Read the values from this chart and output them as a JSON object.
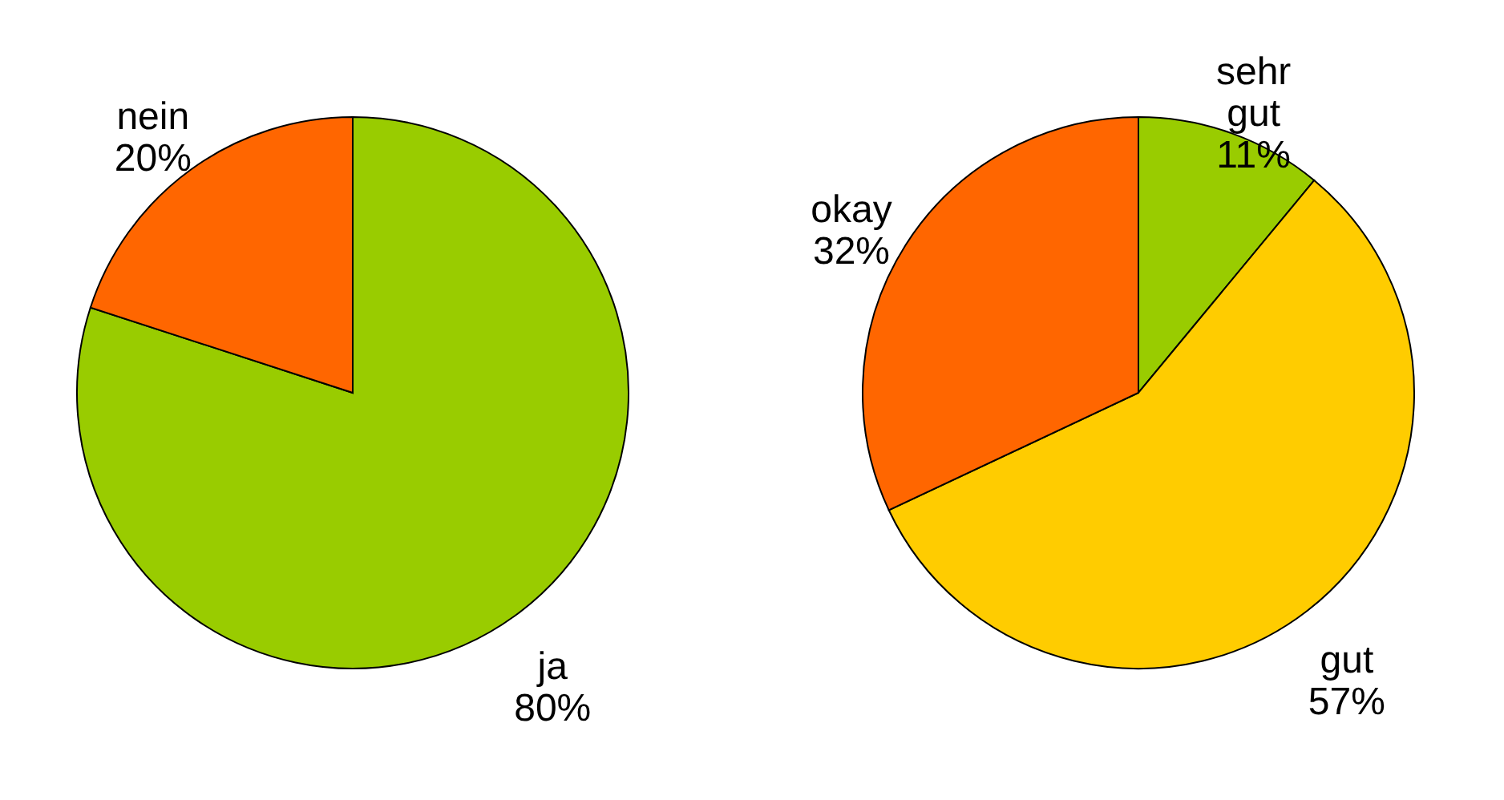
{
  "chart_data": [
    {
      "type": "pie",
      "categories": [
        "ja",
        "nein"
      ],
      "values": [
        80,
        20
      ],
      "colors": [
        "#99cc00",
        "#ff6600"
      ],
      "value_labels": [
        "80%",
        "20%"
      ],
      "legend": false
    },
    {
      "type": "pie",
      "categories": [
        "sehr gut",
        "gut",
        "okay"
      ],
      "values": [
        11,
        57,
        32
      ],
      "colors": [
        "#99cc00",
        "#ffcc00",
        "#ff6600"
      ],
      "value_labels": [
        "11%",
        "57%",
        "32%"
      ],
      "legend": false
    }
  ]
}
